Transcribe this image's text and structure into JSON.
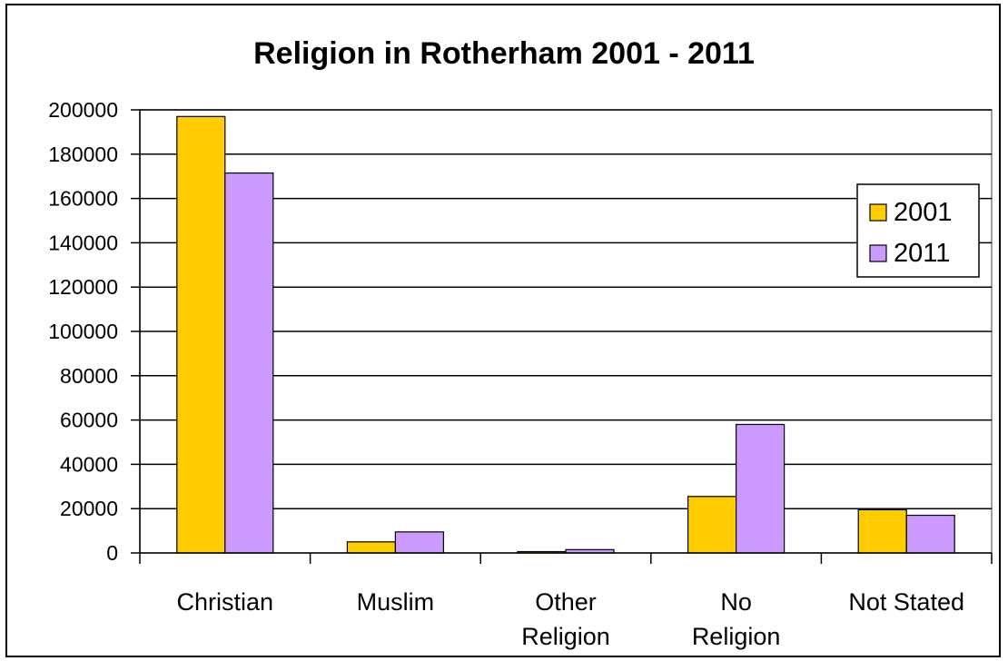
{
  "chart_data": {
    "type": "bar",
    "title": "Religion in Rotherham 2001 - 2011",
    "xlabel": "",
    "ylabel": "",
    "categories": [
      [
        "Christian"
      ],
      [
        "Muslim"
      ],
      [
        "Other",
        "Religion"
      ],
      [
        "No",
        "Religion"
      ],
      [
        "Not Stated"
      ]
    ],
    "series": [
      {
        "name": "2001",
        "color": "#FFCC00",
        "values": [
          197000,
          5000,
          600,
          25500,
          19500
        ]
      },
      {
        "name": "2011",
        "color": "#CC99FF",
        "values": [
          171500,
          9500,
          1500,
          58000,
          17000
        ]
      }
    ],
    "ylim": [
      0,
      200000
    ],
    "yticks": [
      0,
      20000,
      40000,
      60000,
      80000,
      100000,
      120000,
      140000,
      160000,
      180000,
      200000
    ],
    "grid": true,
    "legend_position": "right",
    "plot_background": "#ffffff"
  }
}
